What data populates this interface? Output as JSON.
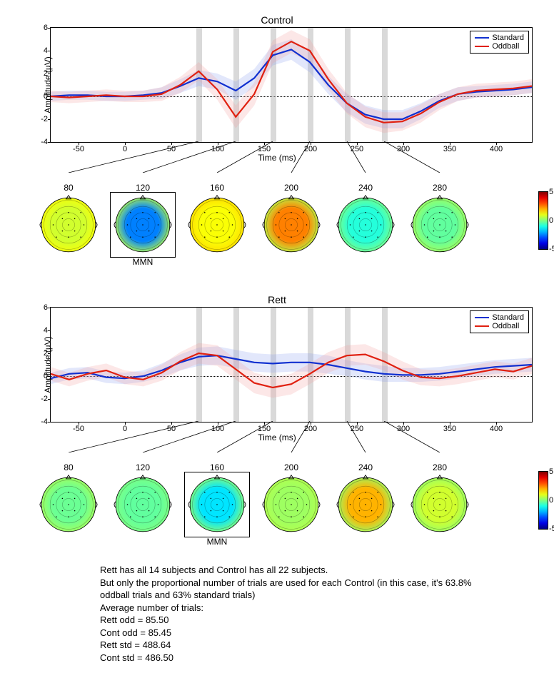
{
  "colors": {
    "standard": "#1030d0",
    "oddball": "#e02010",
    "standard_band": "#8aa0f0",
    "oddball_band": "#f5a0a0",
    "vbar": "#c8c8c8",
    "axis": "#000000",
    "bg": "#ffffff"
  },
  "axes": {
    "x": {
      "min": -80,
      "max": 440,
      "ticks": [
        -50,
        0,
        50,
        100,
        150,
        200,
        250,
        300,
        350,
        400
      ],
      "label": "Time (ms)"
    },
    "y": {
      "min": -4,
      "max": 6,
      "ticks": [
        -4,
        -2,
        0,
        2,
        4,
        6
      ],
      "label": "Amplitude (µV)"
    }
  },
  "vbars_ms": [
    80,
    120,
    160,
    200,
    240,
    280
  ],
  "vbar_width_ms": 6,
  "legend": {
    "standard": "Standard",
    "oddball": "Oddball"
  },
  "panels": [
    {
      "title": "Control",
      "mmn_index": 1,
      "standard": {
        "x": [
          -80,
          -60,
          -40,
          -20,
          0,
          20,
          40,
          60,
          80,
          100,
          120,
          140,
          160,
          180,
          200,
          220,
          240,
          260,
          280,
          300,
          320,
          340,
          360,
          380,
          400,
          420,
          440
        ],
        "y": [
          0.0,
          0.1,
          0.1,
          0.0,
          0.0,
          0.1,
          0.3,
          0.9,
          1.6,
          1.3,
          0.5,
          1.6,
          3.6,
          4.1,
          3.0,
          1.0,
          -0.6,
          -1.6,
          -2.0,
          -2.0,
          -1.3,
          -0.4,
          0.2,
          0.4,
          0.5,
          0.6,
          0.8
        ],
        "band": [
          0.4,
          0.4,
          0.4,
          0.4,
          0.4,
          0.4,
          0.5,
          0.6,
          0.7,
          0.7,
          0.8,
          0.8,
          0.9,
          0.9,
          0.9,
          0.8,
          0.8,
          0.8,
          0.8,
          0.8,
          0.7,
          0.6,
          0.6,
          0.5,
          0.5,
          0.5,
          0.5
        ]
      },
      "oddball": {
        "x": [
          -80,
          -60,
          -40,
          -20,
          0,
          20,
          40,
          60,
          80,
          100,
          120,
          140,
          160,
          180,
          200,
          220,
          240,
          260,
          280,
          300,
          320,
          340,
          360,
          380,
          400,
          420,
          440
        ],
        "y": [
          0.0,
          -0.1,
          0.0,
          0.1,
          0.0,
          0.0,
          0.2,
          1.0,
          2.2,
          0.6,
          -1.8,
          0.2,
          3.9,
          4.8,
          4.0,
          1.5,
          -0.6,
          -1.8,
          -2.3,
          -2.2,
          -1.5,
          -0.5,
          0.2,
          0.5,
          0.6,
          0.7,
          0.9
        ],
        "band": [
          0.5,
          0.5,
          0.5,
          0.5,
          0.5,
          0.5,
          0.6,
          0.7,
          0.8,
          0.9,
          1.0,
          1.0,
          1.0,
          1.0,
          1.0,
          0.9,
          0.9,
          0.9,
          0.9,
          0.8,
          0.8,
          0.7,
          0.6,
          0.6,
          0.6,
          0.6,
          0.6
        ]
      },
      "topo": {
        "labels": [
          80,
          120,
          160,
          200,
          240,
          280
        ],
        "mmn_label": "MMN",
        "center_value": [
          0.8,
          -2.5,
          1.2,
          2.5,
          -0.9,
          -0.3
        ],
        "surround_value": [
          1.2,
          0.6,
          1.6,
          0.5,
          0.0,
          0.4
        ]
      }
    },
    {
      "title": "Rett",
      "mmn_index": 2,
      "standard": {
        "x": [
          -80,
          -60,
          -40,
          -20,
          0,
          20,
          40,
          60,
          80,
          100,
          120,
          140,
          160,
          180,
          200,
          220,
          240,
          260,
          280,
          300,
          320,
          340,
          360,
          380,
          400,
          420,
          440
        ],
        "y": [
          -0.2,
          0.2,
          0.3,
          -0.1,
          -0.2,
          0.0,
          0.5,
          1.2,
          1.7,
          1.8,
          1.5,
          1.2,
          1.1,
          1.2,
          1.2,
          1.0,
          0.7,
          0.4,
          0.2,
          0.1,
          0.1,
          0.2,
          0.4,
          0.6,
          0.8,
          0.9,
          1.0
        ],
        "band": [
          0.5,
          0.5,
          0.5,
          0.5,
          0.5,
          0.5,
          0.6,
          0.7,
          0.8,
          0.8,
          0.8,
          0.8,
          0.8,
          0.8,
          0.8,
          0.8,
          0.7,
          0.7,
          0.7,
          0.6,
          0.6,
          0.6,
          0.6,
          0.6,
          0.6,
          0.6,
          0.6
        ]
      },
      "oddball": {
        "x": [
          -80,
          -60,
          -40,
          -20,
          0,
          20,
          40,
          60,
          80,
          100,
          120,
          140,
          160,
          180,
          200,
          220,
          240,
          260,
          280,
          300,
          320,
          340,
          360,
          380,
          400,
          420,
          440
        ],
        "y": [
          0.2,
          -0.3,
          0.2,
          0.5,
          -0.1,
          -0.3,
          0.3,
          1.3,
          2.0,
          1.8,
          0.6,
          -0.6,
          -1.0,
          -0.7,
          0.2,
          1.2,
          1.8,
          1.9,
          1.3,
          0.5,
          -0.1,
          -0.2,
          0.0,
          0.3,
          0.6,
          0.4,
          0.9
        ],
        "band": [
          0.6,
          0.6,
          0.6,
          0.6,
          0.6,
          0.6,
          0.7,
          0.8,
          0.9,
          0.9,
          0.9,
          0.9,
          0.9,
          0.9,
          0.9,
          0.9,
          0.9,
          0.9,
          0.8,
          0.8,
          0.7,
          0.7,
          0.7,
          0.7,
          0.7,
          0.7,
          0.7
        ]
      },
      "topo": {
        "labels": [
          80,
          120,
          160,
          200,
          240,
          280
        ],
        "mmn_label": "MMN",
        "center_value": [
          -0.2,
          -0.3,
          -1.5,
          0.3,
          2.0,
          0.8
        ],
        "surround_value": [
          0.4,
          0.0,
          0.2,
          0.5,
          0.2,
          0.2
        ]
      }
    }
  ],
  "colorbar": {
    "min": -5,
    "max": 5,
    "ticks": [
      5,
      0,
      -5
    ]
  },
  "caption": [
    "Rett has all 14 subjects and Control has all 22 subjects.",
    "But only the proportional number of trials are used for each Control (in this case, it's 63.8% oddball trials and 63% standard trials)",
    "Average number of trials:",
    "Rett odd = 85.50",
    "Cont odd = 85.45",
    "Rett std = 488.64",
    "Cont std = 486.50"
  ]
}
